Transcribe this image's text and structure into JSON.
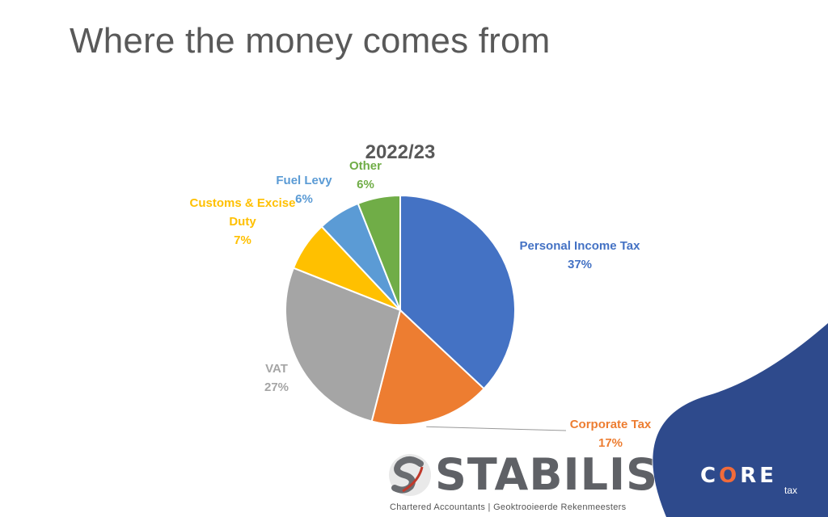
{
  "page": {
    "title": "Where the money comes from"
  },
  "chart_data": {
    "type": "pie",
    "title": "2022/23",
    "slices": [
      {
        "label": "Personal Income Tax",
        "value": 37,
        "display": "37%",
        "color": "#4472C4"
      },
      {
        "label": "Corporate Tax",
        "value": 17,
        "display": "17%",
        "color": "#ED7D31"
      },
      {
        "label": "VAT",
        "value": 27,
        "display": "27%",
        "color": "#A5A5A5"
      },
      {
        "label": "Customs & Excise Duty",
        "value": 7,
        "display": "7%",
        "color": "#FFC000"
      },
      {
        "label": "Fuel Levy",
        "value": 6,
        "display": "6%",
        "color": "#5B9BD5"
      },
      {
        "label": "Other",
        "value": 6,
        "display": "6%",
        "color": "#70AD47"
      }
    ]
  },
  "logos": {
    "stabilis": {
      "name": "STABILIS",
      "tagline": "Chartered Accountants | Geoktrooieerde Rekenmeesters"
    },
    "core": {
      "name": "CORE",
      "sub": "tax"
    }
  },
  "colors": {
    "corner_fill": "#2E4A8C",
    "corner_fill_dark": "#24397A"
  }
}
